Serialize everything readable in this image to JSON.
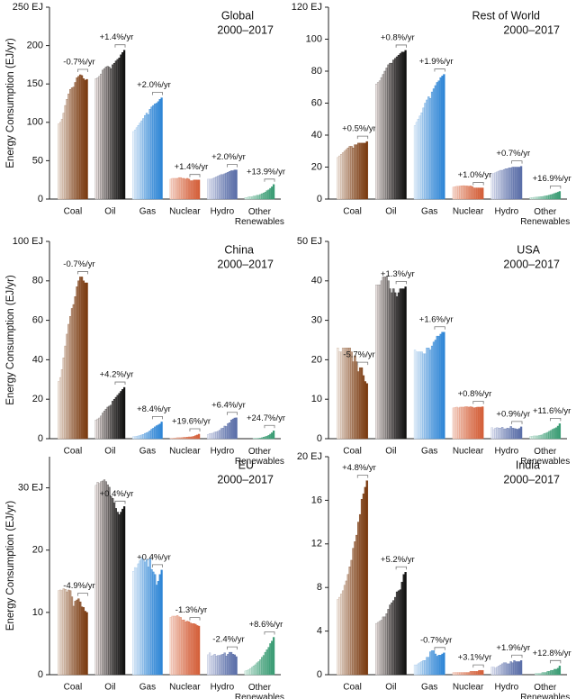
{
  "chart_data": [
    {
      "type": "bar",
      "title": "Global",
      "subtitle": "2000–2017",
      "ylabel": "Energy Consumption (EJ/yr)",
      "ylim": [
        0,
        250
      ],
      "yticks": [
        0,
        50,
        100,
        150,
        200,
        {
          "value": 250,
          "label": "250 EJ"
        }
      ],
      "series": [
        {
          "name": "Coal",
          "colors": [
            "#f4eee8",
            "#7a3a10"
          ],
          "annotation": "-0.7%/yr",
          "values": [
            98,
            100,
            104,
            112,
            122,
            130,
            137,
            143,
            145,
            146,
            152,
            158,
            160,
            162,
            161,
            157,
            155,
            156
          ]
        },
        {
          "name": "Oil",
          "colors": [
            "#efe6e4",
            "#111111"
          ],
          "annotation": "+1.4%/yr",
          "values": [
            157,
            158,
            160,
            163,
            168,
            170,
            172,
            173,
            172,
            170,
            175,
            177,
            180,
            182,
            184,
            188,
            191,
            194
          ]
        },
        {
          "name": "Gas",
          "colors": [
            "#eef4fa",
            "#2f86d6"
          ],
          "annotation": "+2.0%/yr",
          "values": [
            88,
            90,
            93,
            96,
            99,
            102,
            105,
            109,
            112,
            110,
            117,
            120,
            122,
            124,
            125,
            127,
            130,
            132
          ]
        },
        {
          "name": "Nuclear",
          "colors": [
            "#f6dcd2",
            "#d4603a"
          ],
          "annotation": "+1.4%/yr",
          "values": [
            26,
            27,
            27,
            27,
            27,
            28,
            28,
            27,
            27,
            26,
            27,
            26,
            24,
            24,
            25,
            25,
            25,
            25
          ]
        },
        {
          "name": "Hydro",
          "colors": [
            "#e8eaf4",
            "#5a6ea8"
          ],
          "annotation": "+2.0%/yr",
          "values": [
            26,
            26,
            26,
            27,
            28,
            29,
            30,
            31,
            32,
            32,
            33,
            34,
            35,
            36,
            37,
            37,
            38,
            38
          ]
        },
        {
          "name": "Other Renewables",
          "colors": [
            "#e4f2ec",
            "#3a9c74"
          ],
          "annotation": "+13.9%/yr",
          "values": [
            2,
            2,
            3,
            3,
            3,
            4,
            4,
            5,
            5,
            6,
            7,
            8,
            9,
            11,
            12,
            14,
            16,
            19
          ]
        }
      ]
    },
    {
      "type": "bar",
      "title": "Rest of World",
      "subtitle": "2000–2017",
      "ylim": [
        0,
        120
      ],
      "yticks": [
        0,
        20,
        40,
        60,
        80,
        100,
        {
          "value": 120,
          "label": "120 EJ"
        }
      ],
      "series": [
        {
          "name": "Coal",
          "colors": [
            "#f4eee8",
            "#7a3a10"
          ],
          "annotation": "+0.5%/yr",
          "values": [
            26,
            27,
            28,
            29,
            30,
            31,
            32,
            33,
            33,
            32,
            34,
            34,
            35,
            35,
            35,
            35,
            35,
            36
          ]
        },
        {
          "name": "Oil",
          "colors": [
            "#efe6e4",
            "#111111"
          ],
          "annotation": "+0.8%/yr",
          "values": [
            72,
            73,
            74,
            76,
            78,
            80,
            82,
            84,
            85,
            85,
            87,
            88,
            89,
            90,
            91,
            92,
            92,
            93
          ]
        },
        {
          "name": "Gas",
          "colors": [
            "#eef4fa",
            "#2f86d6"
          ],
          "annotation": "+1.9%/yr",
          "values": [
            46,
            48,
            50,
            52,
            54,
            57,
            60,
            62,
            64,
            63,
            67,
            69,
            71,
            73,
            74,
            76,
            77,
            78
          ]
        },
        {
          "name": "Nuclear",
          "colors": [
            "#f6dcd2",
            "#d4603a"
          ],
          "annotation": "+1.0%/yr",
          "values": [
            7.5,
            7.8,
            8,
            8,
            8.2,
            8.3,
            8.4,
            8.2,
            8.2,
            8,
            8.2,
            7.8,
            7,
            7,
            7,
            7,
            7,
            7
          ]
        },
        {
          "name": "Hydro",
          "colors": [
            "#e8eaf4",
            "#5a6ea8"
          ],
          "annotation": "+0.7%/yr",
          "values": [
            16,
            16,
            16.5,
            17,
            17.5,
            18,
            18,
            18.5,
            19,
            19,
            19.5,
            19.5,
            20,
            20,
            20,
            20,
            20,
            20.5
          ]
        },
        {
          "name": "Other Renewables",
          "colors": [
            "#e4f2ec",
            "#3a9c74"
          ],
          "annotation": "+16.9%/yr",
          "values": [
            1,
            1,
            1.1,
            1.2,
            1.3,
            1.4,
            1.5,
            1.6,
            1.8,
            2,
            2.2,
            2.5,
            2.8,
            3.1,
            3.5,
            3.9,
            4.3,
            4.8
          ]
        }
      ]
    },
    {
      "type": "bar",
      "title": "China",
      "subtitle": "2000–2017",
      "ylabel": "Energy Consumption (EJ/yr)",
      "ylim": [
        0,
        100
      ],
      "yticks": [
        0,
        20,
        40,
        60,
        80,
        {
          "value": 100,
          "label": "100 EJ"
        }
      ],
      "series": [
        {
          "name": "Coal",
          "colors": [
            "#f4eee8",
            "#7a3a10"
          ],
          "annotation": "-0.7%/yr",
          "values": [
            29,
            31,
            35,
            41,
            47,
            53,
            58,
            62,
            66,
            68,
            72,
            77,
            80,
            82,
            82,
            80,
            79,
            79
          ]
        },
        {
          "name": "Oil",
          "colors": [
            "#efe6e4",
            "#111111"
          ],
          "annotation": "+4.2%/yr",
          "values": [
            9.5,
            10,
            10.5,
            11.5,
            13,
            14,
            15,
            16,
            16.5,
            17,
            19,
            20,
            21,
            22,
            23,
            24,
            25,
            26
          ]
        },
        {
          "name": "Gas",
          "colors": [
            "#eef4fa",
            "#2f86d6"
          ],
          "annotation": "+8.4%/yr",
          "values": [
            1,
            1.1,
            1.2,
            1.4,
            1.6,
            1.9,
            2.2,
            2.7,
            3,
            3.3,
            4,
            4.8,
            5.3,
            6,
            6.6,
            7,
            7.5,
            8.5
          ]
        },
        {
          "name": "Nuclear",
          "colors": [
            "#f6dcd2",
            "#d4603a"
          ],
          "annotation": "+19.6%/yr",
          "values": [
            0.2,
            0.2,
            0.3,
            0.4,
            0.5,
            0.5,
            0.5,
            0.6,
            0.7,
            0.7,
            0.8,
            0.9,
            0.9,
            1,
            1.2,
            1.6,
            1.9,
            2.3
          ]
        },
        {
          "name": "Hydro",
          "colors": [
            "#e8eaf4",
            "#5a6ea8"
          ],
          "annotation": "+6.4%/yr",
          "values": [
            2.2,
            2.6,
            2.7,
            2.8,
            3.3,
            3.5,
            3.8,
            4.3,
            5.2,
            5.4,
            6.4,
            6.2,
            7.7,
            8.1,
            9.5,
            10,
            10.5,
            10.6
          ]
        },
        {
          "name": "Other Renewables",
          "colors": [
            "#e4f2ec",
            "#3a9c74"
          ],
          "annotation": "+24.7%/yr",
          "values": [
            0,
            0,
            0,
            0,
            0,
            0.1,
            0.1,
            0.1,
            0.2,
            0.3,
            0.5,
            0.8,
            1,
            1.3,
            1.7,
            2.3,
            3,
            4
          ]
        }
      ]
    },
    {
      "type": "bar",
      "title": "USA",
      "subtitle": "2000–2017",
      "ylim": [
        0,
        50
      ],
      "yticks": [
        0,
        10,
        20,
        30,
        40,
        {
          "value": 50,
          "label": "50 EJ"
        }
      ],
      "series": [
        {
          "name": "Coal",
          "colors": [
            "#f4eee8",
            "#7a3a10"
          ],
          "annotation": "-5.7%/yr",
          "values": [
            23,
            22,
            22,
            23,
            23,
            23,
            23,
            23,
            22,
            19.5,
            21,
            19.5,
            17,
            18,
            18,
            16,
            14.5,
            14
          ]
        },
        {
          "name": "Oil",
          "colors": [
            "#efe6e4",
            "#111111"
          ],
          "annotation": "+1.3%/yr",
          "values": [
            39,
            39,
            39,
            40,
            41,
            41,
            41,
            40,
            38,
            37,
            38,
            37,
            36,
            37,
            38,
            38,
            38,
            38.5
          ]
        },
        {
          "name": "Gas",
          "colors": [
            "#eef4fa",
            "#2f86d6"
          ],
          "annotation": "+1.6%/yr",
          "values": [
            22.5,
            22,
            22,
            22,
            22,
            21.5,
            21.5,
            23,
            23,
            22.5,
            23.5,
            24.5,
            25,
            26,
            26,
            26.5,
            27,
            27
          ]
        },
        {
          "name": "Nuclear",
          "colors": [
            "#f6dcd2",
            "#d4603a"
          ],
          "annotation": "+0.8%/yr",
          "values": [
            7.8,
            7.9,
            8,
            7.8,
            8,
            8,
            8,
            8.1,
            8.1,
            8,
            8.1,
            8,
            7.8,
            7.9,
            8,
            8,
            8,
            8.1
          ]
        },
        {
          "name": "Hydro",
          "colors": [
            "#e8eaf4",
            "#5a6ea8"
          ],
          "annotation": "+0.9%/yr",
          "values": [
            2.8,
            2.3,
            2.7,
            2.8,
            2.7,
            2.7,
            2.9,
            2.5,
            2.5,
            2.7,
            2.6,
            3.1,
            2.7,
            2.6,
            2.5,
            2.4,
            2.6,
            3
          ]
        },
        {
          "name": "Other Renewables",
          "colors": [
            "#e4f2ec",
            "#3a9c74"
          ],
          "annotation": "+11.6%/yr",
          "values": [
            0.6,
            0.6,
            0.7,
            0.7,
            0.7,
            0.8,
            0.9,
            1,
            1.3,
            1.4,
            1.6,
            1.9,
            2.1,
            2.4,
            2.6,
            2.8,
            3.2,
            3.8
          ]
        }
      ]
    },
    {
      "type": "bar",
      "title": "EU",
      "subtitle": "2000–2017",
      "ylabel": "Energy Consumption (EJ/yr)",
      "ylim": [
        0,
        35
      ],
      "yticks": [
        0,
        10,
        20,
        {
          "value": 30,
          "label": "30 EJ"
        }
      ],
      "series": [
        {
          "name": "Coal",
          "colors": [
            "#f4eee8",
            "#7a3a10"
          ],
          "annotation": "-4.9%/yr",
          "values": [
            13.5,
            13.6,
            13.5,
            13.8,
            13.7,
            13.3,
            13.6,
            13.5,
            12.5,
            11,
            11.8,
            12,
            12.2,
            11.7,
            10.9,
            10.8,
            10.2,
            10
          ]
        },
        {
          "name": "Oil",
          "colors": [
            "#efe6e4",
            "#111111"
          ],
          "annotation": "+0.4%/yr",
          "values": [
            30.4,
            30.9,
            30.7,
            31,
            31.1,
            31.3,
            31,
            30.5,
            30.1,
            28.6,
            28.3,
            27.6,
            26.7,
            26.1,
            25.7,
            26.1,
            26.6,
            27
          ]
        },
        {
          "name": "Gas",
          "colors": [
            "#eef4fa",
            "#2f86d6"
          ],
          "annotation": "+0.4%/yr",
          "values": [
            16.6,
            17.2,
            17.1,
            17.8,
            18.3,
            18.7,
            18.5,
            18.1,
            18.5,
            17.3,
            18.6,
            16.9,
            16.5,
            16.1,
            14.4,
            15,
            16.1,
            16.8
          ]
        },
        {
          "name": "Nuclear",
          "colors": [
            "#f6dcd2",
            "#d4603a"
          ],
          "annotation": "-1.3%/yr",
          "values": [
            9.2,
            9.4,
            9.4,
            9.4,
            9.5,
            9.3,
            9.2,
            8.8,
            8.8,
            8.5,
            8.6,
            8.5,
            8.3,
            8.2,
            8.2,
            8.1,
            7.9,
            7.8
          ]
        },
        {
          "name": "Hydro",
          "colors": [
            "#e8eaf4",
            "#5a6ea8"
          ],
          "annotation": "-2.4%/yr",
          "values": [
            3.2,
            3.5,
            3,
            3.1,
            3.3,
            3,
            3.1,
            3.1,
            3.2,
            3.3,
            3.5,
            3,
            3.3,
            3.6,
            3.6,
            3.3,
            3.2,
            2.9
          ]
        },
        {
          "name": "Other Renewables",
          "colors": [
            "#e4f2ec",
            "#3a9c74"
          ],
          "annotation": "+8.6%/yr",
          "values": [
            0.6,
            0.7,
            0.8,
            1,
            1.2,
            1.4,
            1.6,
            1.9,
            2.1,
            2.4,
            2.8,
            3.1,
            3.6,
            4,
            4.4,
            5,
            5.4,
            6
          ]
        }
      ]
    },
    {
      "type": "bar",
      "title": "India",
      "subtitle": "2000–2017",
      "ylim": [
        0,
        20
      ],
      "yticks": [
        0,
        4,
        8,
        12,
        16,
        {
          "value": 20,
          "label": "20 EJ"
        }
      ],
      "series": [
        {
          "name": "Coal",
          "colors": [
            "#f4eee8",
            "#7a3a10"
          ],
          "annotation": "+4.8%/yr",
          "values": [
            6.9,
            7.1,
            7.4,
            7.7,
            8.2,
            8.6,
            9.2,
            9.9,
            10.5,
            11.6,
            12.2,
            12.8,
            14,
            14.7,
            16.1,
            16.6,
            17.2,
            17.8
          ]
        },
        {
          "name": "Oil",
          "colors": [
            "#efe6e4",
            "#111111"
          ],
          "annotation": "+5.2%/yr",
          "values": [
            4.7,
            4.8,
            4.9,
            5,
            5.3,
            5.3,
            5.6,
            6,
            6.4,
            6.6,
            6.8,
            7.1,
            7.6,
            7.7,
            7.8,
            8.5,
            9.2,
            9.4
          ]
        },
        {
          "name": "Gas",
          "colors": [
            "#eef4fa",
            "#2f86d6"
          ],
          "annotation": "-0.7%/yr",
          "values": [
            0.9,
            0.9,
            1,
            1.1,
            1.2,
            1.3,
            1.3,
            1.6,
            1.6,
            2.1,
            2.2,
            2.2,
            1.9,
            1.7,
            1.8,
            1.8,
            1.9,
            2
          ]
        },
        {
          "name": "Nuclear",
          "colors": [
            "#f6dcd2",
            "#d4603a"
          ],
          "annotation": "+3.1%/yr",
          "values": [
            0.2,
            0.2,
            0.2,
            0.2,
            0.2,
            0.2,
            0.2,
            0.2,
            0.2,
            0.2,
            0.3,
            0.3,
            0.3,
            0.3,
            0.3,
            0.4,
            0.4,
            0.4
          ]
        },
        {
          "name": "Hydro",
          "colors": [
            "#e8eaf4",
            "#5a6ea8"
          ],
          "annotation": "+1.9%/yr",
          "values": [
            0.7,
            0.7,
            0.6,
            0.7,
            0.8,
            0.9,
            1,
            1.1,
            1.1,
            1,
            1,
            1.2,
            1.1,
            1.3,
            1.2,
            1.2,
            1.2,
            1.3
          ]
        },
        {
          "name": "Other Renewables",
          "colors": [
            "#e4f2ec",
            "#3a9c74"
          ],
          "annotation": "+12.8%/yr",
          "values": [
            0,
            0,
            0,
            0.1,
            0.1,
            0.1,
            0.1,
            0.2,
            0.2,
            0.2,
            0.3,
            0.3,
            0.4,
            0.4,
            0.5,
            0.5,
            0.6,
            0.8
          ]
        }
      ]
    }
  ]
}
